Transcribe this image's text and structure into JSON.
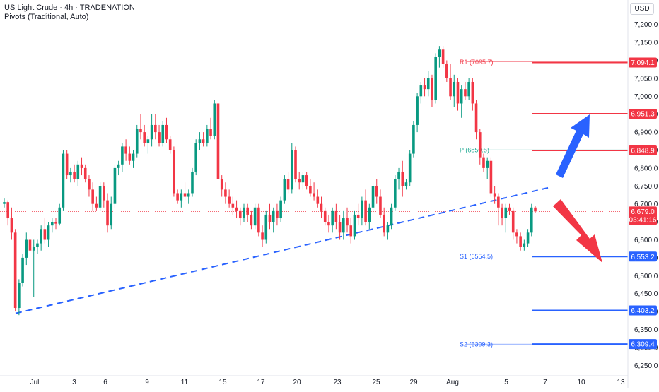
{
  "header": {
    "title": "US Light Crude · 4h · TRADENATION",
    "indicator": "Pivots (Traditional, Auto)"
  },
  "currency_button": "USD",
  "chart_data": {
    "type": "candlestick",
    "y_ticks": [
      6250,
      6300,
      6350,
      6400,
      6450,
      6500,
      6550,
      6600,
      6650,
      6700,
      6750,
      6800,
      6850,
      6900,
      6950,
      7000,
      7050,
      7100,
      7150,
      7200
    ],
    "y_tick_labels": [
      "6,250.0",
      "6,300.0",
      "6,350.0",
      "6,400.0",
      "6,450.0",
      "6,500.0",
      "6,550.0",
      "6,600.0",
      "6,650.0",
      "6,700.0",
      "6,750.0",
      "6,800.0",
      "6,850.0",
      "6,900.0",
      "6,950.0",
      "7,000.0",
      "7,050.0",
      "7,100.0",
      "7,150.0",
      "7,200.0"
    ],
    "x_tick_labels": [
      "Jul",
      "3",
      "6",
      "9",
      "11",
      "15",
      "17",
      "20",
      "23",
      "25",
      "29",
      "Aug",
      "5",
      "7",
      "10",
      "13"
    ],
    "current_price": {
      "value": 6679.0,
      "label": "6,679.0",
      "countdown": "03:41:16"
    },
    "pivots": [
      {
        "name": "R1",
        "value": 7095.7,
        "tag": "R1 (7095.7)",
        "axis_label": "7,094.1",
        "color": "#f23645"
      },
      {
        "name": "P",
        "value": 6850.5,
        "tag": "P (6850.5)",
        "axis_label": "6,848.9",
        "color": "#22ab94"
      },
      {
        "name": "S1",
        "value": 6554.5,
        "tag": "S1 (6554.5)",
        "axis_label": "6,553.2",
        "color": "#2962ff"
      },
      {
        "name": "S2",
        "value": 6309.3,
        "tag": "S2 (6309.3)",
        "axis_label": "6,309.4",
        "color": "#2962ff"
      }
    ],
    "levels": [
      {
        "value": 7094.1,
        "label": "7,094.1",
        "color": "#f23645"
      },
      {
        "value": 6951.3,
        "label": "6,951.3",
        "color": "#f23645"
      },
      {
        "value": 6848.9,
        "label": "6,848.9",
        "color": "#f23645"
      },
      {
        "value": 6553.2,
        "label": "6,553.2",
        "color": "#2962ff"
      },
      {
        "value": 6403.2,
        "label": "6,403.2",
        "color": "#2962ff"
      },
      {
        "value": 6309.4,
        "label": "6,309.4",
        "color": "#2962ff"
      }
    ],
    "trendline": {
      "from": 6395,
      "to": 6745,
      "color": "#2962ff"
    },
    "arrows": [
      {
        "name": "up-arrow",
        "direction": "up",
        "color": "#2962ff"
      },
      {
        "name": "down-arrow",
        "direction": "down",
        "color": "#f23645"
      }
    ],
    "candles": [
      [
        6700,
        6715,
        6690,
        6705
      ],
      [
        6705,
        6710,
        6640,
        6660
      ],
      [
        6660,
        6690,
        6600,
        6620
      ],
      [
        6620,
        6630,
        6400,
        6410
      ],
      [
        6410,
        6490,
        6390,
        6480
      ],
      [
        6480,
        6560,
        6470,
        6550
      ],
      [
        6550,
        6620,
        6530,
        6600
      ],
      [
        6600,
        6610,
        6560,
        6570
      ],
      [
        6570,
        6600,
        6440,
        6580
      ],
      [
        6580,
        6600,
        6560,
        6590
      ],
      [
        6590,
        6640,
        6570,
        6630
      ],
      [
        6630,
        6660,
        6590,
        6600
      ],
      [
        6600,
        6650,
        6580,
        6640
      ],
      [
        6640,
        6660,
        6620,
        6650
      ],
      [
        6650,
        6660,
        6630,
        6645
      ],
      [
        6645,
        6700,
        6640,
        6690
      ],
      [
        6690,
        6850,
        6680,
        6840
      ],
      [
        6840,
        6850,
        6770,
        6780
      ],
      [
        6780,
        6800,
        6760,
        6790
      ],
      [
        6790,
        6810,
        6760,
        6770
      ],
      [
        6770,
        6820,
        6750,
        6810
      ],
      [
        6810,
        6830,
        6780,
        6800
      ],
      [
        6800,
        6810,
        6760,
        6770
      ],
      [
        6770,
        6780,
        6720,
        6740
      ],
      [
        6740,
        6760,
        6680,
        6700
      ],
      [
        6700,
        6720,
        6680,
        6690
      ],
      [
        6690,
        6760,
        6680,
        6750
      ],
      [
        6750,
        6760,
        6690,
        6710
      ],
      [
        6710,
        6730,
        6620,
        6640
      ],
      [
        6640,
        6720,
        6630,
        6700
      ],
      [
        6700,
        6810,
        6690,
        6800
      ],
      [
        6800,
        6820,
        6780,
        6810
      ],
      [
        6810,
        6870,
        6790,
        6860
      ],
      [
        6860,
        6880,
        6820,
        6840
      ],
      [
        6840,
        6860,
        6810,
        6820
      ],
      [
        6820,
        6850,
        6800,
        6840
      ],
      [
        6840,
        6920,
        6830,
        6910
      ],
      [
        6910,
        6950,
        6880,
        6900
      ],
      [
        6900,
        6920,
        6860,
        6870
      ],
      [
        6870,
        6890,
        6840,
        6880
      ],
      [
        6880,
        6950,
        6860,
        6920
      ],
      [
        6920,
        6950,
        6880,
        6900
      ],
      [
        6900,
        6920,
        6860,
        6870
      ],
      [
        6870,
        6930,
        6860,
        6920
      ],
      [
        6920,
        6940,
        6870,
        6880
      ],
      [
        6880,
        6890,
        6840,
        6850
      ],
      [
        6850,
        6860,
        6720,
        6730
      ],
      [
        6730,
        6740,
        6700,
        6710
      ],
      [
        6710,
        6740,
        6690,
        6730
      ],
      [
        6730,
        6760,
        6710,
        6720
      ],
      [
        6720,
        6740,
        6700,
        6730
      ],
      [
        6730,
        6800,
        6720,
        6790
      ],
      [
        6790,
        6880,
        6780,
        6870
      ],
      [
        6870,
        6900,
        6850,
        6880
      ],
      [
        6880,
        6900,
        6860,
        6870
      ],
      [
        6870,
        6920,
        6860,
        6910
      ],
      [
        6910,
        6940,
        6880,
        6890
      ],
      [
        6890,
        6990,
        6880,
        6980
      ],
      [
        6980,
        6990,
        6760,
        6770
      ],
      [
        6770,
        6780,
        6720,
        6740
      ],
      [
        6740,
        6760,
        6700,
        6720
      ],
      [
        6720,
        6740,
        6690,
        6700
      ],
      [
        6700,
        6720,
        6670,
        6690
      ],
      [
        6690,
        6710,
        6660,
        6680
      ],
      [
        6680,
        6690,
        6640,
        6660
      ],
      [
        6660,
        6700,
        6650,
        6690
      ],
      [
        6690,
        6700,
        6650,
        6670
      ],
      [
        6670,
        6680,
        6630,
        6640
      ],
      [
        6640,
        6700,
        6630,
        6690
      ],
      [
        6690,
        6700,
        6610,
        6620
      ],
      [
        6620,
        6640,
        6580,
        6600
      ],
      [
        6600,
        6680,
        6590,
        6670
      ],
      [
        6670,
        6700,
        6630,
        6650
      ],
      [
        6650,
        6690,
        6620,
        6680
      ],
      [
        6680,
        6700,
        6640,
        6660
      ],
      [
        6660,
        6720,
        6650,
        6710
      ],
      [
        6710,
        6780,
        6700,
        6770
      ],
      [
        6770,
        6790,
        6730,
        6740
      ],
      [
        6740,
        6870,
        6730,
        6850
      ],
      [
        6850,
        6860,
        6760,
        6770
      ],
      [
        6770,
        6790,
        6740,
        6760
      ],
      [
        6760,
        6790,
        6740,
        6780
      ],
      [
        6780,
        6790,
        6740,
        6750
      ],
      [
        6750,
        6770,
        6720,
        6730
      ],
      [
        6730,
        6760,
        6710,
        6720
      ],
      [
        6720,
        6740,
        6690,
        6700
      ],
      [
        6700,
        6720,
        6660,
        6680
      ],
      [
        6680,
        6690,
        6640,
        6650
      ],
      [
        6650,
        6670,
        6620,
        6640
      ],
      [
        6640,
        6690,
        6620,
        6680
      ],
      [
        6680,
        6700,
        6630,
        6650
      ],
      [
        6650,
        6670,
        6600,
        6620
      ],
      [
        6620,
        6680,
        6600,
        6660
      ],
      [
        6660,
        6690,
        6620,
        6640
      ],
      [
        6640,
        6660,
        6590,
        6610
      ],
      [
        6610,
        6680,
        6600,
        6670
      ],
      [
        6670,
        6700,
        6640,
        6660
      ],
      [
        6660,
        6720,
        6640,
        6710
      ],
      [
        6710,
        6740,
        6640,
        6650
      ],
      [
        6650,
        6700,
        6630,
        6690
      ],
      [
        6690,
        6760,
        6680,
        6750
      ],
      [
        6750,
        6770,
        6700,
        6720
      ],
      [
        6720,
        6740,
        6660,
        6670
      ],
      [
        6670,
        6690,
        6610,
        6620
      ],
      [
        6620,
        6650,
        6600,
        6640
      ],
      [
        6640,
        6700,
        6630,
        6690
      ],
      [
        6690,
        6780,
        6680,
        6770
      ],
      [
        6770,
        6800,
        6740,
        6790
      ],
      [
        6790,
        6820,
        6720,
        6750
      ],
      [
        6750,
        6770,
        6740,
        6760
      ],
      [
        6760,
        6850,
        6750,
        6840
      ],
      [
        6840,
        6930,
        6830,
        6920
      ],
      [
        6920,
        7010,
        6900,
        7000
      ],
      [
        7000,
        7040,
        6980,
        7030
      ],
      [
        7030,
        7050,
        7000,
        7020
      ],
      [
        7020,
        7070,
        7000,
        7050
      ],
      [
        7050,
        7060,
        6970,
        6990
      ],
      [
        6990,
        7120,
        6980,
        7110
      ],
      [
        7110,
        7140,
        7080,
        7130
      ],
      [
        7130,
        7140,
        7080,
        7090
      ],
      [
        7090,
        7100,
        7040,
        7050
      ],
      [
        7050,
        7090,
        6990,
        7000
      ],
      [
        7000,
        7060,
        6970,
        7040
      ],
      [
        7040,
        7050,
        6960,
        6980
      ],
      [
        6980,
        7030,
        6940,
        7020
      ],
      [
        7020,
        7040,
        6990,
        7000
      ],
      [
        7000,
        7050,
        6990,
        7040
      ],
      [
        7040,
        7050,
        6960,
        6980
      ],
      [
        6980,
        6990,
        6880,
        6900
      ],
      [
        6900,
        6910,
        6810,
        6830
      ],
      [
        6830,
        6840,
        6790,
        6800
      ],
      [
        6800,
        6830,
        6770,
        6820
      ],
      [
        6820,
        6830,
        6720,
        6730
      ],
      [
        6730,
        6750,
        6700,
        6720
      ],
      [
        6720,
        6730,
        6640,
        6690
      ],
      [
        6690,
        6700,
        6640,
        6660
      ],
      [
        6660,
        6700,
        6620,
        6690
      ],
      [
        6690,
        6700,
        6670,
        6680
      ],
      [
        6680,
        6690,
        6600,
        6620
      ],
      [
        6620,
        6630,
        6590,
        6610
      ],
      [
        6610,
        6620,
        6570,
        6580
      ],
      [
        6580,
        6600,
        6570,
        6590
      ],
      [
        6590,
        6630,
        6580,
        6620
      ],
      [
        6620,
        6700,
        6610,
        6690
      ],
      [
        6690,
        6695,
        6675,
        6679
      ]
    ]
  }
}
